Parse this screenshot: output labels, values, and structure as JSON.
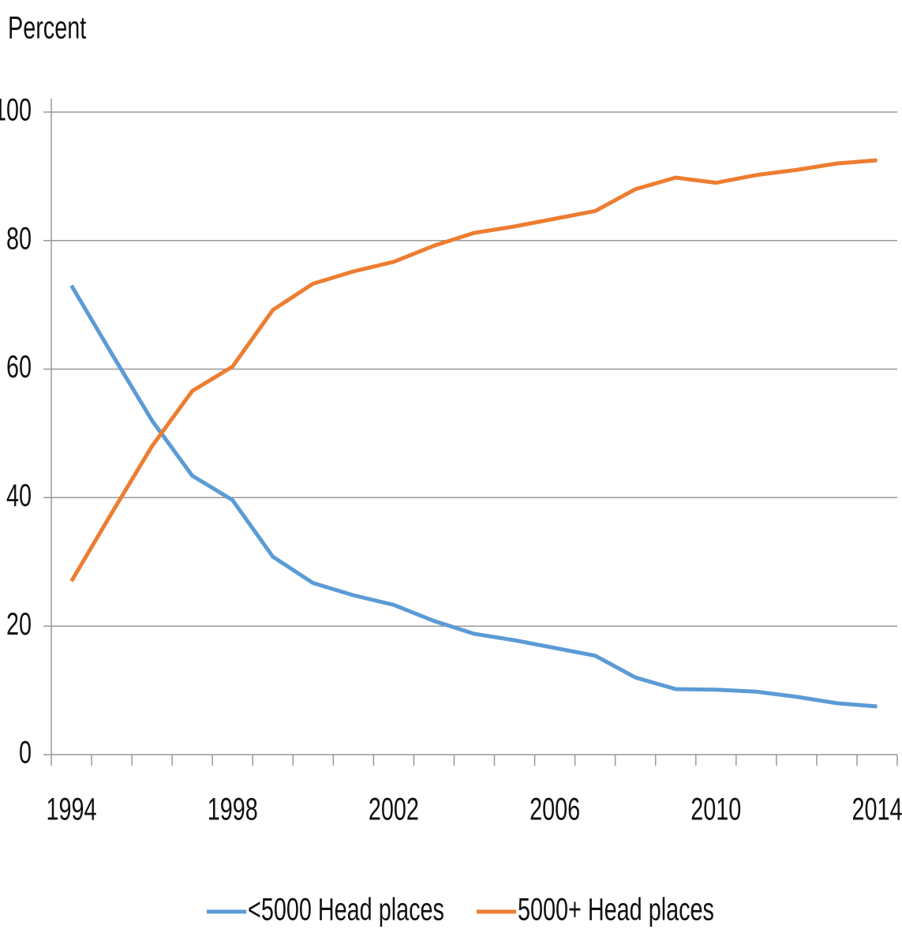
{
  "chart_data": {
    "type": "line",
    "y_label": "Percent",
    "categories": [
      "1994",
      null,
      null,
      null,
      "1998",
      null,
      null,
      null,
      "2002",
      null,
      null,
      null,
      "2006",
      null,
      null,
      null,
      "2010",
      null,
      null,
      null,
      "2014"
    ],
    "series": [
      {
        "name": "<5000 Head places",
        "color": "#5b9bd5",
        "values": [
          73,
          62.4,
          52,
          43.4,
          39.6,
          30.8,
          26.7,
          24.8,
          23.3,
          20.8,
          18.8,
          17.8,
          16.6,
          15.4,
          12,
          10.2,
          10.1,
          9.8,
          9,
          8,
          7.5
        ]
      },
      {
        "name": "5000+ Head places",
        "color": "#ed7d31",
        "values": [
          27,
          37.6,
          48,
          56.6,
          60.4,
          69.2,
          73.3,
          75.2,
          76.7,
          79.2,
          81.2,
          82.2,
          83.4,
          84.6,
          88,
          89.8,
          89,
          90.2,
          91,
          92,
          92.5
        ]
      }
    ],
    "ylim": [
      0,
      100
    ],
    "yticks": [
      0,
      20,
      40,
      60,
      80,
      100
    ],
    "grid": true,
    "legend": "bottom"
  }
}
